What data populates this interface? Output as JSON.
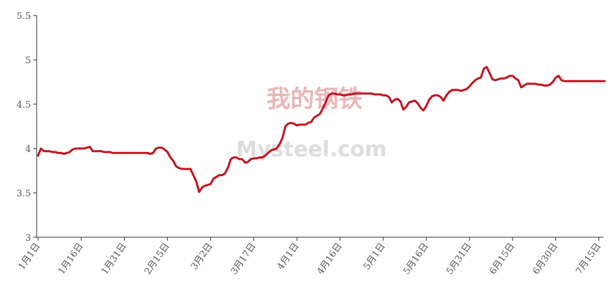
{
  "watermark": {
    "cn": "我的钢铁",
    "en": "Mysteel.com",
    "color_cn": "#e9b7b7",
    "color_en": "#dddddd"
  },
  "chart_data": {
    "type": "line",
    "title": "",
    "xlabel": "",
    "ylabel": "",
    "ylim": [
      3,
      5.5
    ],
    "yticks": [
      "3",
      "3.5",
      "4",
      "4.5",
      "5",
      "5.5"
    ],
    "xticks": [
      "1月1日",
      "1月16日",
      "1月31日",
      "2月15日",
      "3月2日",
      "3月17日",
      "4月1日",
      "4月16日",
      "5月1日",
      "5月16日",
      "5月31日",
      "6月15日",
      "6月30日",
      "7月15日"
    ],
    "x_unit": "day_index_from_jan1",
    "line_color": "#c0141f",
    "grid": false,
    "series": [
      {
        "x": [
          0,
          1,
          2,
          3,
          4,
          5,
          6,
          7,
          8,
          9,
          10,
          11,
          12,
          13,
          14,
          15,
          16,
          17,
          18,
          19,
          20,
          21,
          22,
          23,
          24,
          25,
          26,
          27,
          28,
          29,
          30,
          31,
          32,
          33,
          34,
          35,
          36,
          37,
          38,
          39,
          40,
          41,
          42,
          43,
          44,
          45,
          46,
          47,
          48,
          49,
          50,
          51,
          52,
          53,
          54,
          55,
          56,
          57,
          58,
          59,
          60,
          61,
          62,
          63,
          64,
          65,
          66,
          67,
          68,
          69,
          70,
          71,
          72,
          73,
          74,
          75,
          76,
          77,
          78,
          79,
          80,
          81,
          82,
          83,
          84,
          85,
          86,
          87,
          88,
          89,
          90,
          91,
          92,
          93,
          94,
          95,
          96,
          97,
          98,
          99,
          100,
          101,
          102,
          103,
          104,
          105,
          106,
          107,
          108,
          109,
          110,
          111,
          112,
          113,
          114,
          115,
          116,
          117,
          118,
          119,
          120,
          121,
          122,
          123,
          124,
          125,
          126,
          127,
          128,
          129,
          130,
          131,
          132,
          133,
          134,
          135,
          136,
          137,
          138,
          139,
          140,
          141,
          142,
          143,
          144,
          145,
          146,
          147,
          148,
          149,
          150,
          151,
          152,
          153,
          154,
          155,
          156,
          157,
          158,
          159,
          160,
          161,
          162,
          163,
          164,
          165,
          166,
          167,
          168,
          169,
          170,
          171,
          172,
          173,
          174,
          175,
          176,
          177,
          178,
          179,
          180,
          181,
          182,
          183,
          184,
          185,
          186,
          187,
          188,
          189,
          190,
          191,
          192,
          193,
          194,
          195,
          196,
          197
        ],
        "values": [
          3.92,
          4.0,
          3.97,
          3.97,
          3.97,
          3.96,
          3.96,
          3.95,
          3.95,
          3.94,
          3.95,
          3.96,
          3.99,
          4.0,
          4.0,
          4.0,
          4.0,
          4.01,
          4.02,
          3.97,
          3.97,
          3.97,
          3.97,
          3.96,
          3.96,
          3.96,
          3.95,
          3.95,
          3.95,
          3.95,
          3.95,
          3.95,
          3.95,
          3.95,
          3.95,
          3.95,
          3.95,
          3.95,
          3.95,
          3.94,
          3.95,
          4.0,
          4.01,
          4.01,
          3.99,
          3.96,
          3.9,
          3.86,
          3.8,
          3.78,
          3.77,
          3.77,
          3.77,
          3.77,
          3.7,
          3.63,
          3.51,
          3.56,
          3.58,
          3.59,
          3.6,
          3.66,
          3.68,
          3.7,
          3.7,
          3.72,
          3.78,
          3.88,
          3.9,
          3.9,
          3.88,
          3.88,
          3.84,
          3.85,
          3.88,
          3.89,
          3.89,
          3.9,
          3.9,
          3.92,
          3.95,
          3.98,
          3.99,
          4.0,
          4.05,
          4.12,
          4.25,
          4.28,
          4.29,
          4.28,
          4.26,
          4.27,
          4.27,
          4.27,
          4.29,
          4.3,
          4.35,
          4.37,
          4.39,
          4.45,
          4.52,
          4.6,
          4.62,
          4.62,
          4.61,
          4.61,
          4.6,
          4.6,
          4.61,
          4.61,
          4.62,
          4.62,
          4.62,
          4.62,
          4.62,
          4.62,
          4.62,
          4.61,
          4.61,
          4.61,
          4.6,
          4.6,
          4.58,
          4.52,
          4.55,
          4.56,
          4.53,
          4.44,
          4.47,
          4.52,
          4.53,
          4.54,
          4.51,
          4.46,
          4.43,
          4.48,
          4.55,
          4.59,
          4.6,
          4.6,
          4.58,
          4.54,
          4.6,
          4.64,
          4.66,
          4.66,
          4.66,
          4.65,
          4.66,
          4.67,
          4.7,
          4.74,
          4.77,
          4.79,
          4.8,
          4.9,
          4.92,
          4.85,
          4.78,
          4.77,
          4.78,
          4.79,
          4.79,
          4.8,
          4.82,
          4.82,
          4.79,
          4.77,
          4.69,
          4.71,
          4.73,
          4.73,
          4.73,
          4.73,
          4.72,
          4.72,
          4.71,
          4.71,
          4.72,
          4.75,
          4.8,
          4.82,
          4.77,
          4.76,
          4.76,
          4.76,
          4.76,
          4.76,
          4.76,
          4.76,
          4.76,
          4.76,
          4.76,
          4.76,
          4.76,
          4.76,
          4.76,
          4.76
        ]
      }
    ]
  }
}
